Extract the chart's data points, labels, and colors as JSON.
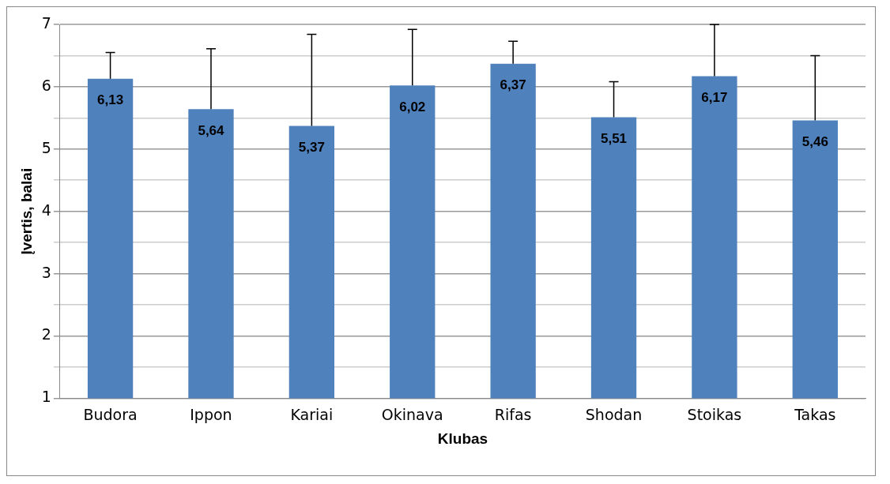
{
  "chart_data": {
    "type": "bar",
    "xlabel": "Klubas",
    "ylabel": "Įvertis, balai",
    "categories": [
      "Budora",
      "Ippon",
      "Kariai",
      "Okinava",
      "Rifas",
      "Shodan",
      "Stoikas",
      "Takas"
    ],
    "values": [
      6.13,
      5.64,
      5.37,
      6.02,
      6.37,
      5.51,
      6.17,
      5.46
    ],
    "value_labels": [
      "6,13",
      "5,64",
      "5,37",
      "6,02",
      "6,37",
      "5,51",
      "6,17",
      "5,46"
    ],
    "errors": [
      [
        6.13,
        6.55
      ],
      [
        5.64,
        6.61
      ],
      [
        5.37,
        6.84
      ],
      [
        6.02,
        6.92
      ],
      [
        6.37,
        6.73
      ],
      [
        5.51,
        6.08
      ],
      [
        6.17,
        7
      ],
      [
        5.46,
        6.5
      ]
    ],
    "color": "#4f81bd",
    "ylim": [
      1,
      7
    ],
    "yticks": [
      1,
      {
        "value": 1.5,
        "label": null
      },
      2,
      {
        "value": 2.5,
        "label": null
      },
      3,
      {
        "value": 3.5,
        "label": null
      },
      4,
      {
        "value": 4.5,
        "label": null
      },
      5,
      {
        "value": 5.5,
        "label": null
      },
      6,
      {
        "value": 6.5,
        "label": null
      },
      7
    ],
    "grid": "y",
    "legend": false
  }
}
